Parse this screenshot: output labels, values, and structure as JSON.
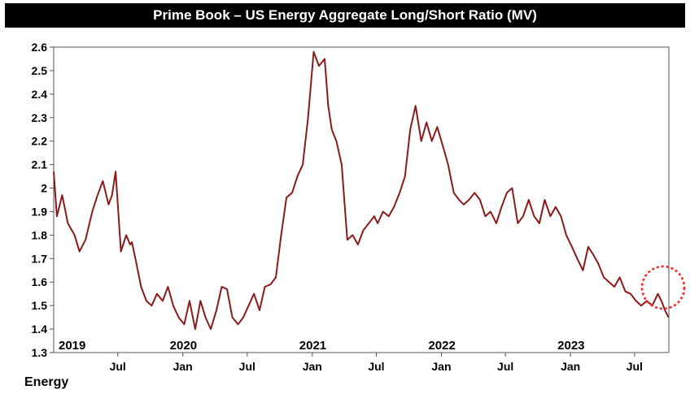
{
  "chart_data": {
    "type": "line",
    "title": "Prime Book – US Energy Aggregate Long/Short Ratio (MV)",
    "xlabel": "",
    "ylabel": "",
    "ylim": [
      1.3,
      2.6
    ],
    "yticks": [
      "1.3",
      "1.4",
      "1.5",
      "1.6",
      "1.7",
      "1.8",
      "1.9",
      "2",
      "2.1",
      "2.2",
      "2.3",
      "2.4",
      "2.5",
      "2.6"
    ],
    "year_labels": [
      "2019",
      "2020",
      "2021",
      "2022",
      "2023"
    ],
    "month_labels": [
      "Jul",
      "Jan",
      "Jul",
      "Jan",
      "Jul",
      "Jan",
      "Jul",
      "Jan",
      "Jul"
    ],
    "legend": "Energy",
    "colors": {
      "line": "#8B1A1A",
      "highlight": "#FF2020",
      "title_bg": "#000000"
    },
    "series": [
      {
        "name": "Energy",
        "x": [
          "2019-01-01",
          "2019-01-10",
          "2019-01-25",
          "2019-02-10",
          "2019-03-01",
          "2019-03-15",
          "2019-04-01",
          "2019-04-20",
          "2019-05-05",
          "2019-05-20",
          "2019-06-05",
          "2019-06-15",
          "2019-06-25",
          "2019-07-10",
          "2019-07-25",
          "2019-08-05",
          "2019-08-10",
          "2019-08-20",
          "2019-09-05",
          "2019-09-20",
          "2019-10-05",
          "2019-10-20",
          "2019-11-05",
          "2019-11-20",
          "2019-12-05",
          "2019-12-20",
          "2020-01-05",
          "2020-01-20",
          "2020-02-05",
          "2020-02-20",
          "2020-03-05",
          "2020-03-20",
          "2020-04-05",
          "2020-04-20",
          "2020-05-05",
          "2020-05-20",
          "2020-06-05",
          "2020-06-20",
          "2020-07-05",
          "2020-07-20",
          "2020-08-05",
          "2020-08-20",
          "2020-09-05",
          "2020-09-20",
          "2020-10-05",
          "2020-10-20",
          "2020-11-05",
          "2020-11-20",
          "2020-12-05",
          "2020-12-20",
          "2021-01-05",
          "2021-01-20",
          "2021-02-05",
          "2021-02-15",
          "2021-02-25",
          "2021-03-10",
          "2021-03-25",
          "2021-04-10",
          "2021-04-25",
          "2021-05-10",
          "2021-05-25",
          "2021-06-10",
          "2021-06-25",
          "2021-07-05",
          "2021-07-20",
          "2021-08-05",
          "2021-08-20",
          "2021-09-05",
          "2021-09-20",
          "2021-10-05",
          "2021-10-20",
          "2021-11-05",
          "2021-11-20",
          "2021-12-05",
          "2021-12-20",
          "2022-01-05",
          "2022-01-20",
          "2022-02-05",
          "2022-02-20",
          "2022-03-05",
          "2022-03-20",
          "2022-04-05",
          "2022-04-20",
          "2022-05-05",
          "2022-05-20",
          "2022-06-05",
          "2022-06-20",
          "2022-07-05",
          "2022-07-20",
          "2022-08-05",
          "2022-08-20",
          "2022-09-05",
          "2022-09-20",
          "2022-10-05",
          "2022-10-20",
          "2022-11-05",
          "2022-11-20",
          "2022-12-05",
          "2022-12-20",
          "2023-01-05",
          "2023-01-20",
          "2023-02-05",
          "2023-02-20",
          "2023-03-05",
          "2023-03-20",
          "2023-04-05",
          "2023-04-20",
          "2023-05-05",
          "2023-05-20",
          "2023-06-05",
          "2023-06-20",
          "2023-07-05",
          "2023-07-20",
          "2023-08-05",
          "2023-08-20",
          "2023-09-05",
          "2023-09-15",
          "2023-09-25",
          "2023-10-05"
        ],
        "values": [
          2.07,
          1.88,
          1.97,
          1.85,
          1.8,
          1.73,
          1.78,
          1.9,
          1.97,
          2.03,
          1.93,
          1.97,
          2.07,
          1.73,
          1.8,
          1.76,
          1.77,
          1.7,
          1.58,
          1.52,
          1.5,
          1.55,
          1.52,
          1.58,
          1.5,
          1.45,
          1.42,
          1.52,
          1.4,
          1.52,
          1.45,
          1.4,
          1.48,
          1.58,
          1.57,
          1.45,
          1.42,
          1.45,
          1.5,
          1.55,
          1.48,
          1.58,
          1.59,
          1.62,
          1.8,
          1.96,
          1.98,
          2.05,
          2.1,
          2.3,
          2.58,
          2.52,
          2.55,
          2.35,
          2.25,
          2.2,
          2.1,
          1.78,
          1.8,
          1.76,
          1.82,
          1.85,
          1.88,
          1.85,
          1.9,
          1.88,
          1.92,
          1.98,
          2.05,
          2.25,
          2.35,
          2.2,
          2.28,
          2.2,
          2.26,
          2.18,
          2.1,
          1.98,
          1.95,
          1.93,
          1.95,
          1.98,
          1.95,
          1.88,
          1.9,
          1.85,
          1.92,
          1.98,
          2.0,
          1.85,
          1.88,
          1.95,
          1.88,
          1.85,
          1.95,
          1.88,
          1.92,
          1.88,
          1.8,
          1.75,
          1.7,
          1.65,
          1.75,
          1.72,
          1.68,
          1.62,
          1.6,
          1.58,
          1.62,
          1.56,
          1.55,
          1.52,
          1.5,
          1.52,
          1.5,
          1.55,
          1.52,
          1.48,
          1.45
        ]
      }
    ]
  }
}
